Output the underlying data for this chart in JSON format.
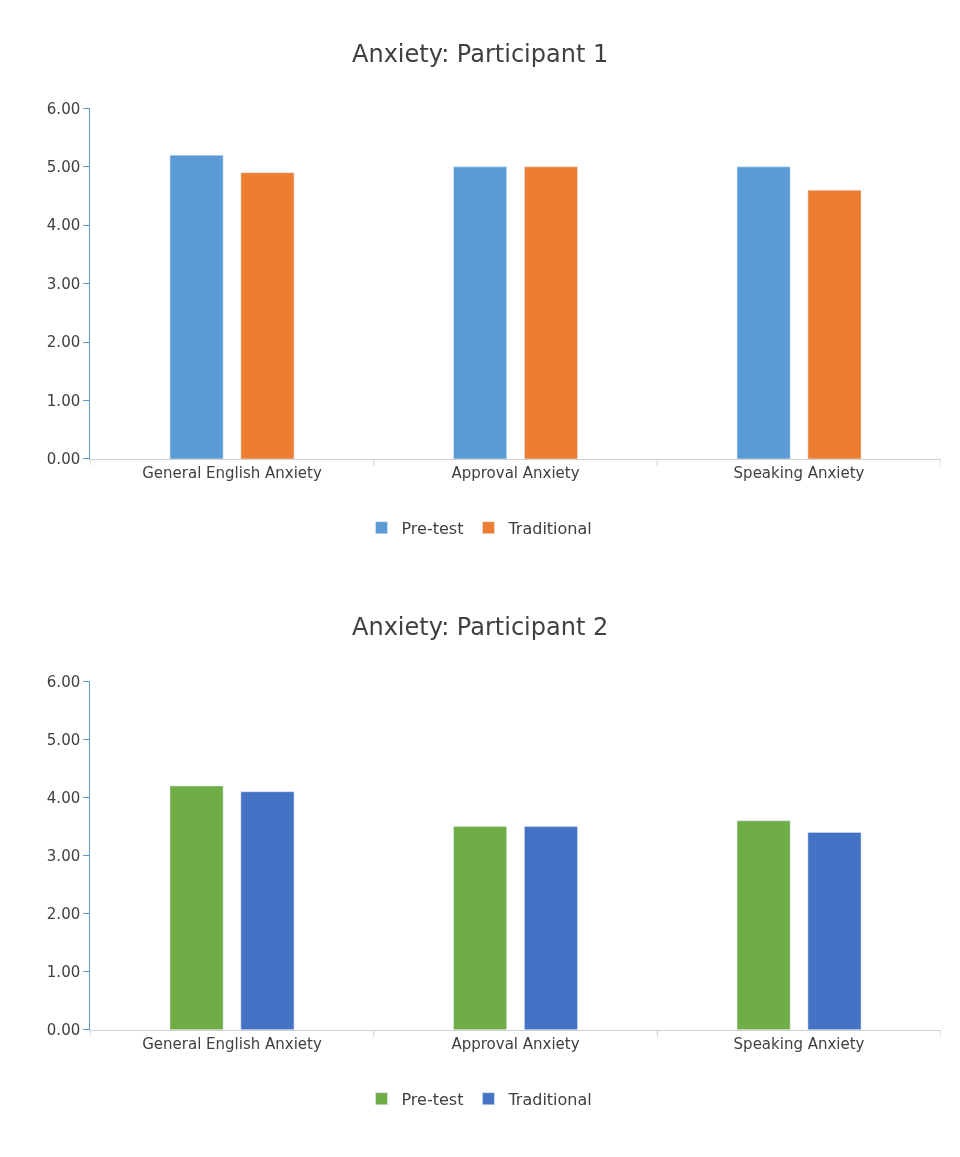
{
  "chart_data": [
    {
      "type": "bar",
      "title": "Anxiety: Participant 1",
      "categories": [
        "General English Anxiety",
        "Approval Anxiety",
        "Speaking Anxiety"
      ],
      "series": [
        {
          "name": "Pre-test",
          "color": "#5b9bd5",
          "values": [
            5.2,
            5.0,
            5.0
          ]
        },
        {
          "name": "Traditional",
          "color": "#ed7d31",
          "values": [
            4.9,
            5.0,
            4.6
          ]
        }
      ],
      "ylim": [
        0,
        6
      ],
      "yticks": [
        {
          "value": 0,
          "label": "0.00"
        },
        {
          "value": 1,
          "label": "1.00"
        },
        {
          "value": 2,
          "label": "2.00"
        },
        {
          "value": 3,
          "label": "3.00"
        },
        {
          "value": 4,
          "label": "4.00"
        },
        {
          "value": 5,
          "label": "5.00"
        },
        {
          "value": 6,
          "label": "6.00"
        }
      ],
      "legend": "bottom"
    },
    {
      "type": "bar",
      "title": "Anxiety: Participant 2",
      "categories": [
        "General English Anxiety",
        "Approval Anxiety",
        "Speaking Anxiety"
      ],
      "series": [
        {
          "name": "Pre-test",
          "color": "#70ad47",
          "values": [
            4.2,
            3.5,
            3.6
          ]
        },
        {
          "name": "Traditional",
          "color": "#4472c4",
          "values": [
            4.1,
            3.5,
            3.4
          ]
        }
      ],
      "ylim": [
        0,
        6
      ],
      "yticks": [
        {
          "value": 0,
          "label": "0.00"
        },
        {
          "value": 1,
          "label": "1.00"
        },
        {
          "value": 2,
          "label": "2.00"
        },
        {
          "value": 3,
          "label": "3.00"
        },
        {
          "value": 4,
          "label": "4.00"
        },
        {
          "value": 5,
          "label": "5.00"
        },
        {
          "value": 6,
          "label": "6.00"
        }
      ],
      "legend": "bottom"
    }
  ]
}
